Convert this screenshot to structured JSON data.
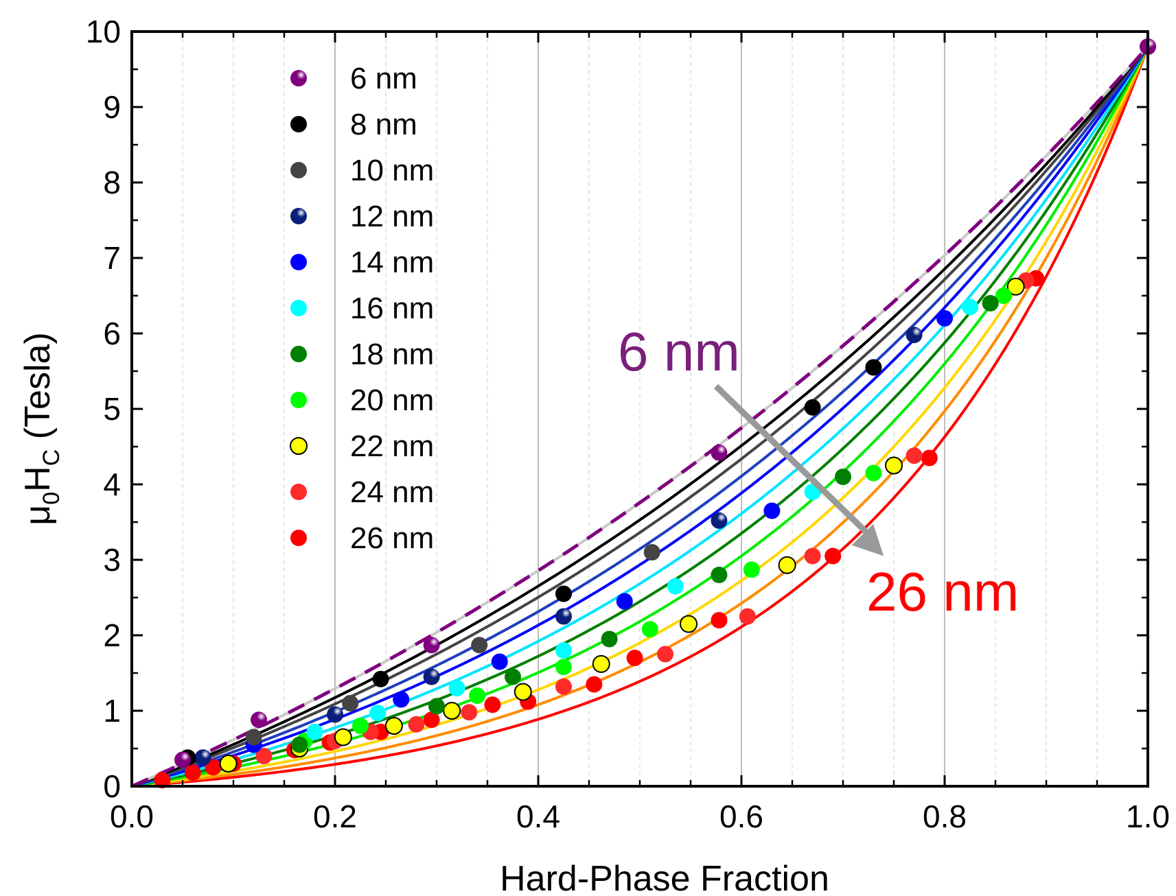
{
  "chart_data": {
    "type": "scatter",
    "xlabel": "Hard-Phase Fraction",
    "ylabel": {
      "mu": "μ",
      "sub0": "0",
      "H": "H",
      "subC": "C",
      "unit": " (Tesla)"
    },
    "xlim": [
      0,
      1
    ],
    "ylim": [
      0,
      10
    ],
    "x_ticks": [
      "0.0",
      "0.2",
      "0.4",
      "0.6",
      "0.8",
      "1.0"
    ],
    "y_ticks": [
      "0",
      "1",
      "2",
      "3",
      "4",
      "5",
      "6",
      "7",
      "8",
      "9",
      "10"
    ],
    "grid": "vertical",
    "legend_position": "top-left",
    "annotations": {
      "start": {
        "text": "6 nm",
        "color": "#7a1f7a"
      },
      "end": {
        "text": "26 nm",
        "color": "#ff0000"
      },
      "arrow_color": "#999999"
    },
    "series": [
      {
        "name": "6 nm",
        "color": "#800080",
        "marker": "sphere",
        "curve_color": "#c8c8c8",
        "dashed": true,
        "k": 0.95,
        "points": [
          [
            0.05,
            0.35
          ],
          [
            0.125,
            0.88
          ],
          [
            0.295,
            1.87
          ],
          [
            0.578,
            4.42
          ],
          [
            1.0,
            9.8
          ]
        ]
      },
      {
        "name": "8 nm",
        "color": "#000000",
        "marker": "solid",
        "curve_color": "#000000",
        "k": 1.15,
        "points": [
          [
            0.055,
            0.38
          ],
          [
            0.245,
            1.42
          ],
          [
            0.425,
            2.55
          ],
          [
            0.67,
            5.02
          ],
          [
            0.73,
            5.55
          ]
        ]
      },
      {
        "name": "10 nm",
        "color": "#444444",
        "marker": "solid",
        "curve_color": "#444444",
        "k": 1.3,
        "points": [
          [
            0.12,
            0.65
          ],
          [
            0.215,
            1.1
          ],
          [
            0.342,
            1.87
          ],
          [
            0.512,
            3.1
          ],
          [
            0.73,
            5.55
          ]
        ]
      },
      {
        "name": "12 nm",
        "color": "#0a1f7a",
        "marker": "sphere",
        "curve_color": "#1f3fbf",
        "k": 1.5,
        "points": [
          [
            0.07,
            0.38
          ],
          [
            0.2,
            0.95
          ],
          [
            0.295,
            1.45
          ],
          [
            0.425,
            2.25
          ],
          [
            0.578,
            3.52
          ],
          [
            0.77,
            5.98
          ]
        ]
      },
      {
        "name": "14 nm",
        "color": "#0000ff",
        "marker": "solid",
        "curve_color": "#0000ff",
        "k": 1.7,
        "points": [
          [
            0.12,
            0.55
          ],
          [
            0.265,
            1.15
          ],
          [
            0.362,
            1.65
          ],
          [
            0.485,
            2.45
          ],
          [
            0.63,
            3.65
          ],
          [
            0.8,
            6.2
          ]
        ]
      },
      {
        "name": "16 nm",
        "color": "#00ffff",
        "marker": "solid",
        "curve_color": "#00e5ff",
        "k": 1.95,
        "points": [
          [
            0.18,
            0.72
          ],
          [
            0.242,
            0.97
          ],
          [
            0.32,
            1.3
          ],
          [
            0.425,
            1.8
          ],
          [
            0.535,
            2.65
          ],
          [
            0.67,
            3.9
          ],
          [
            0.825,
            6.35
          ]
        ]
      },
      {
        "name": "18 nm",
        "color": "#008000",
        "marker": "solid",
        "curve_color": "#008000",
        "k": 2.2,
        "points": [
          [
            0.165,
            0.55
          ],
          [
            0.3,
            1.06
          ],
          [
            0.375,
            1.45
          ],
          [
            0.47,
            1.95
          ],
          [
            0.578,
            2.8
          ],
          [
            0.7,
            4.1
          ],
          [
            0.845,
            6.4
          ]
        ]
      },
      {
        "name": "20 nm",
        "color": "#00ff00",
        "marker": "solid",
        "curve_color": "#00ee00",
        "k": 2.5,
        "points": [
          [
            0.17,
            0.6
          ],
          [
            0.225,
            0.8
          ],
          [
            0.34,
            1.2
          ],
          [
            0.425,
            1.58
          ],
          [
            0.51,
            2.08
          ],
          [
            0.61,
            2.87
          ],
          [
            0.73,
            4.15
          ],
          [
            0.858,
            6.5
          ]
        ]
      },
      {
        "name": "22 nm",
        "color": "#ffff00",
        "marker": "ring",
        "curve_color": "#ffd700",
        "k": 2.85,
        "points": [
          [
            0.095,
            0.3
          ],
          [
            0.165,
            0.5
          ],
          [
            0.208,
            0.65
          ],
          [
            0.258,
            0.8
          ],
          [
            0.315,
            1.0
          ],
          [
            0.385,
            1.25
          ],
          [
            0.462,
            1.62
          ],
          [
            0.548,
            2.15
          ],
          [
            0.645,
            2.93
          ],
          [
            0.75,
            4.25
          ],
          [
            0.87,
            6.62
          ]
        ]
      },
      {
        "name": "24 nm",
        "color": "#ff2a2a",
        "marker": "solid",
        "curve_color": "#ff8c00",
        "k": 3.2,
        "points": [
          [
            0.13,
            0.4
          ],
          [
            0.2,
            0.6
          ],
          [
            0.235,
            0.72
          ],
          [
            0.28,
            0.82
          ],
          [
            0.332,
            0.98
          ],
          [
            0.425,
            1.32
          ],
          [
            0.525,
            1.75
          ],
          [
            0.606,
            2.25
          ],
          [
            0.67,
            3.05
          ],
          [
            0.77,
            4.38
          ],
          [
            0.88,
            6.7
          ]
        ]
      },
      {
        "name": "26 nm",
        "color": "#ff0000",
        "marker": "solid",
        "curve_color": "#ff0000",
        "k": 3.6,
        "points": [
          [
            0.03,
            0.08
          ],
          [
            0.06,
            0.18
          ],
          [
            0.08,
            0.25
          ],
          [
            0.1,
            0.3
          ],
          [
            0.16,
            0.48
          ],
          [
            0.195,
            0.58
          ],
          [
            0.245,
            0.72
          ],
          [
            0.295,
            0.88
          ],
          [
            0.355,
            1.08
          ],
          [
            0.39,
            1.12
          ],
          [
            0.455,
            1.35
          ],
          [
            0.495,
            1.7
          ],
          [
            0.578,
            2.2
          ],
          [
            0.69,
            3.05
          ],
          [
            0.785,
            4.35
          ],
          [
            0.89,
            6.73
          ],
          [
            1.0,
            9.8
          ]
        ]
      }
    ]
  }
}
